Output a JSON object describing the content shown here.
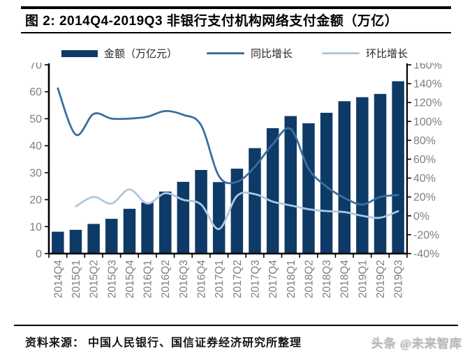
{
  "figure": {
    "title": "图 2:  2014Q4-2019Q3 非银行支付机构网络支付金额（万亿）",
    "source": "资料来源： 中国人民银行、国信证券经济研究所整理",
    "watermark": "头条 @未来智库"
  },
  "chart_data": {
    "type": "bar",
    "subtype": "combo-bar-line-dual-axis",
    "title": "2014Q4-2019Q3 非银行支付机构网络支付金额（万亿）",
    "categories": [
      "2014Q4",
      "2015Q1",
      "2015Q2",
      "2015Q3",
      "2015Q4",
      "2016Q1",
      "2016Q2",
      "2016Q3",
      "2016Q4",
      "2017Q1",
      "2017Q2",
      "2017Q3",
      "2017Q4",
      "2018Q1",
      "2018Q2",
      "2018Q3",
      "2018Q4",
      "2019Q1",
      "2019Q2",
      "2019Q3"
    ],
    "series": [
      {
        "name": "金额（万亿元）",
        "type": "bar",
        "axis": "left",
        "color": "#0E3A67",
        "values": [
          8.1,
          8.8,
          11.0,
          12.9,
          16.6,
          18.9,
          23.0,
          26.6,
          31.0,
          26.5,
          31.5,
          39.1,
          46.5,
          51.0,
          48.3,
          52.2,
          56.5,
          58.0,
          59.2,
          63.9
        ]
      },
      {
        "name": "同比增长",
        "type": "line",
        "axis": "right",
        "unit": "%",
        "color": "#3C6E9F",
        "values": [
          135,
          86,
          108,
          103,
          103,
          105,
          111,
          107,
          96,
          42,
          36,
          52,
          76,
          92,
          50,
          31,
          19,
          12,
          20,
          22
        ]
      },
      {
        "name": "环比增长",
        "type": "line",
        "axis": "right",
        "unit": "%",
        "color": "#AFC7DE",
        "values": [
          null,
          10,
          20,
          13,
          28,
          13,
          24,
          17,
          12,
          -14,
          21,
          23,
          15,
          11,
          7,
          5,
          4,
          0,
          -2,
          5
        ]
      }
    ],
    "left_axis": {
      "min": 0,
      "max": 70,
      "step": 10,
      "tick_labels": [
        "0",
        "10",
        "20",
        "30",
        "40",
        "50",
        "60",
        "70"
      ]
    },
    "right_axis": {
      "min": -40,
      "max": 160,
      "step": 20,
      "tick_labels": [
        "-40%",
        "-20%",
        "0%",
        "20%",
        "40%",
        "60%",
        "80%",
        "100%",
        "120%",
        "140%",
        "160%"
      ]
    },
    "legend_position": "top",
    "grid": false,
    "axis_text_color": "#7F7F7F",
    "axis_line_color": "#000000"
  }
}
